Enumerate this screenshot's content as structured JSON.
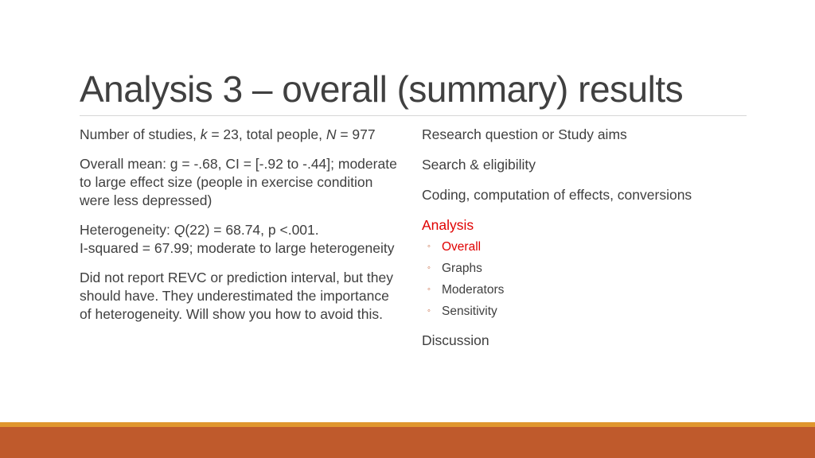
{
  "slide": {
    "title": "Analysis 3 – overall (summary) results"
  },
  "left": {
    "p1": {
      "pre_k": "Number of studies, ",
      "k": "k",
      "mid": " = 23, total people, ",
      "n": "N",
      "post": " = 977"
    },
    "p2": "Overall mean: g = -.68, CI = [-.92 to -.44]; moderate to large effect size (people in exercise condition were less depressed)",
    "p3": {
      "pre_q": "Heterogeneity: ",
      "q": "Q",
      "post_q": "(22) = 68.74, p <.001.",
      "line2": "I-squared = 67.99; moderate to large heterogeneity"
    },
    "p4": "Did not report REVC or prediction interval, but they should have.  They underestimated the importance of heterogeneity.  Will show you how to avoid this."
  },
  "right": {
    "items": [
      "Research question or Study aims",
      "Search & eligibility",
      "Coding, computation of effects, conversions",
      "Analysis"
    ],
    "subitems": [
      "Overall",
      "Graphs",
      "Moderators",
      "Sensitivity"
    ],
    "last": "Discussion",
    "bullet_glyph": "◦"
  },
  "colors": {
    "active": "#e00000",
    "accent_thin": "#e0962e",
    "accent_thick": "#bf5a2c"
  }
}
